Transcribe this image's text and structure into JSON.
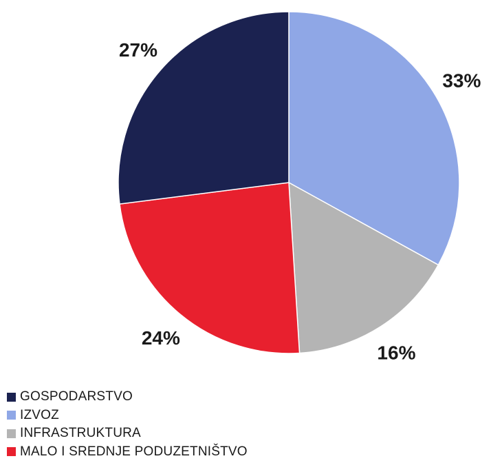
{
  "chart_data": {
    "type": "pie",
    "title": "",
    "start_angle_deg": 0,
    "direction": "clockwise",
    "slices": [
      {
        "label": "IZVOZ",
        "value": 33,
        "value_label": "33%",
        "color": "#8fa7e6"
      },
      {
        "label": "INFRASTRUKTURA",
        "value": 16,
        "value_label": "16%",
        "color": "#b4b4b4"
      },
      {
        "label": "MALO I SREDNJE PODUZETNIŠTVO",
        "value": 24,
        "value_label": "24%",
        "color": "#e8202e"
      },
      {
        "label": "GOSPODARSTVO",
        "value": 27,
        "value_label": "27%",
        "color": "#1b2250"
      }
    ],
    "legend": {
      "placement": "bottom-left",
      "order": [
        "GOSPODARSTVO",
        "IZVOZ",
        "INFRASTRUKTURA",
        "MALO I SREDNJE PODUZETNIŠTVO"
      ]
    }
  }
}
